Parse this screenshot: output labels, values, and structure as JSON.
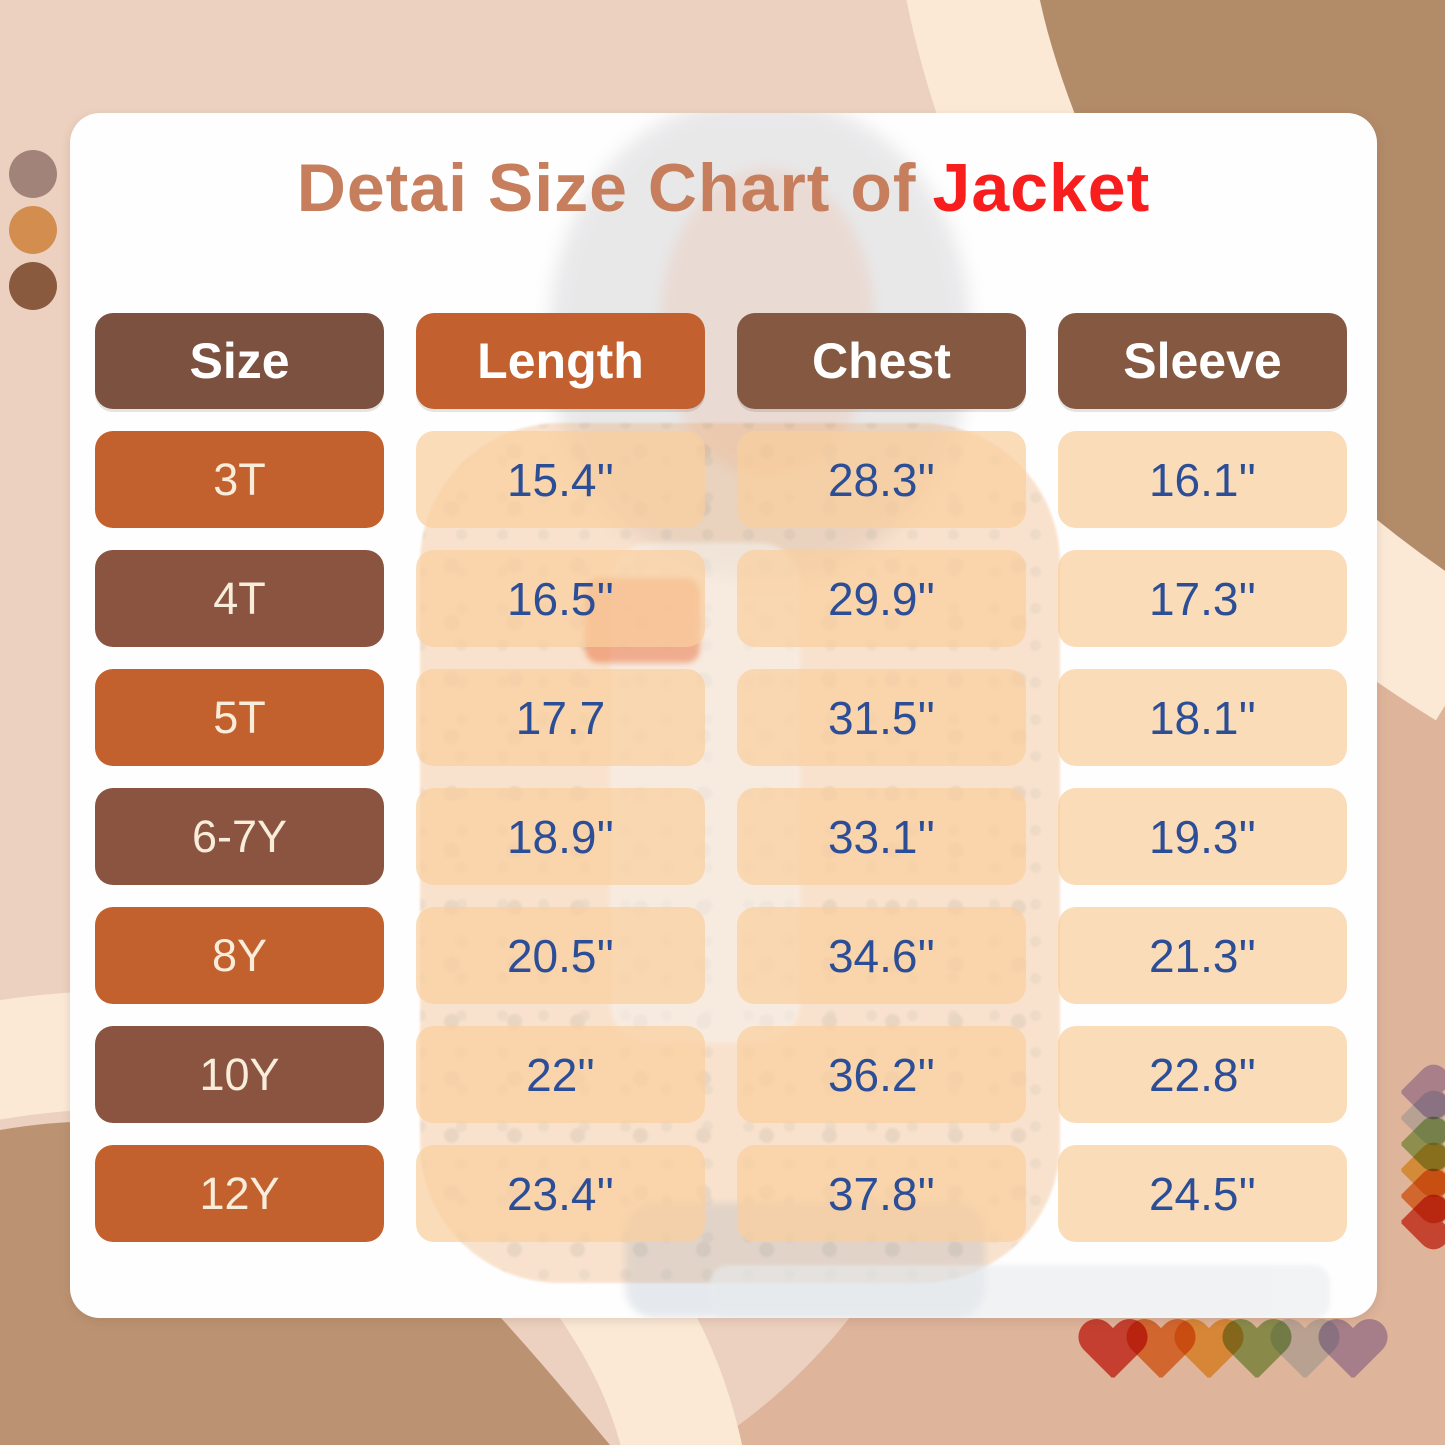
{
  "title": {
    "main": "Detai Size Chart of",
    "highlight": "Jacket"
  },
  "chart_data": {
    "type": "table",
    "title": "Detai Size Chart of Jacket",
    "columns": [
      "Size",
      "Length",
      "Chest",
      "Sleeve"
    ],
    "rows": [
      [
        "3T",
        "15.4''",
        "28.3''",
        "16.1''"
      ],
      [
        "4T",
        "16.5''",
        "29.9''",
        "17.3''"
      ],
      [
        "5T",
        "17.7",
        "31.5''",
        "18.1''"
      ],
      [
        "6-7Y",
        "18.9''",
        "33.1''",
        "19.3''"
      ],
      [
        "8Y",
        "20.5''",
        "34.6''",
        "21.3''"
      ],
      [
        "10Y",
        "22''",
        "36.2''",
        "22.8''"
      ],
      [
        "12Y",
        "23.4''",
        "37.8''",
        "24.5''"
      ]
    ],
    "units": "inches",
    "layout_hints": {
      "grid": "rounded pill cells",
      "label_column_alternating": true
    }
  },
  "colors": {
    "title_text": "#c67e5c",
    "title_highlight": "#f81e1e",
    "header_size_bg": "#7d5140",
    "header_length_bg": "#c2612f",
    "header_other_bg": "#855941",
    "row_odd_bg": "#c2602e",
    "row_even_bg": "#8a5440",
    "value_text": "#2b4e97",
    "value_cell_bg": "rgba(250,206,158,0.72)"
  },
  "decorations": {
    "palette_dots": [
      "#a28379",
      "#d38d4e",
      "#8a5a3e"
    ],
    "bottom_hearts": [
      "#dd3b2f",
      "#ee7d2c",
      "#f5b33b",
      "#8cba62",
      "#cde0ed",
      "#b3a6dc"
    ],
    "side_hearts": [
      "#b7a9de",
      "#cadff0",
      "#93c16a",
      "#f3bb42",
      "#ee7c2b",
      "#dc4430"
    ]
  }
}
